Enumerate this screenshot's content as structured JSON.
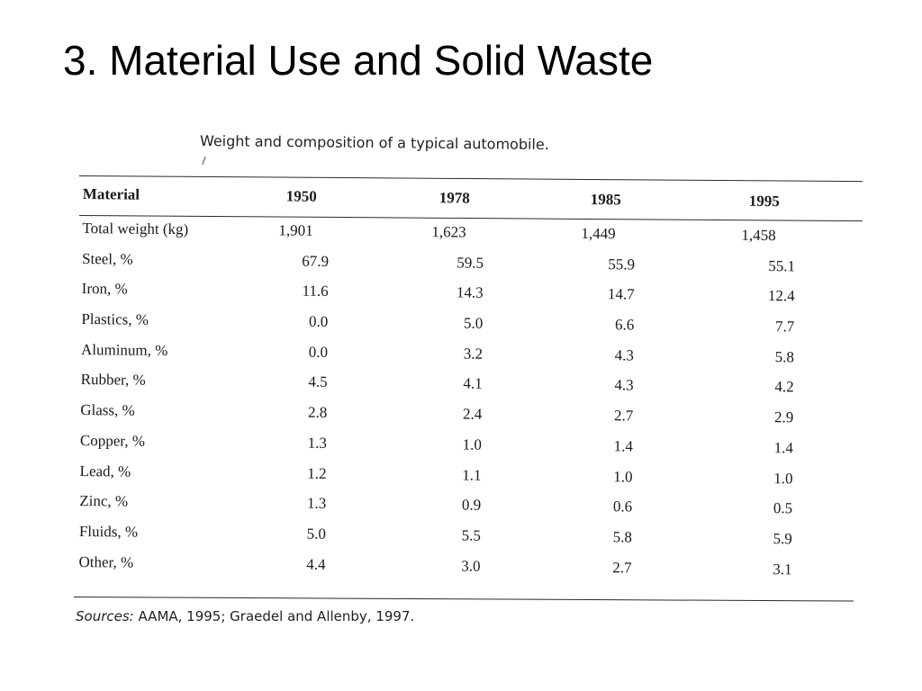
{
  "slide": {
    "title": "3. Material Use and Solid Waste"
  },
  "table": {
    "caption": "Weight and composition of a typical automobile.",
    "columns": [
      "Material",
      "1950",
      "1978",
      "1985",
      "1995"
    ],
    "rows": [
      [
        "Total weight (kg)",
        "1,901",
        "1,623",
        "1,449",
        "1,458"
      ],
      [
        "Steel, %",
        "67.9",
        "59.5",
        "55.9",
        "55.1"
      ],
      [
        "Iron, %",
        "11.6",
        "14.3",
        "14.7",
        "12.4"
      ],
      [
        "Plastics, %",
        "0.0",
        "5.0",
        "6.6",
        "7.7"
      ],
      [
        "Aluminum, %",
        "0.0",
        "3.2",
        "4.3",
        "5.8"
      ],
      [
        "Rubber, %",
        "4.5",
        "4.1",
        "4.3",
        "4.2"
      ],
      [
        "Glass, %",
        "2.8",
        "2.4",
        "2.7",
        "2.9"
      ],
      [
        "Copper, %",
        "1.3",
        "1.0",
        "1.4",
        "1.4"
      ],
      [
        "Lead, %",
        "1.2",
        "1.1",
        "1.0",
        "1.0"
      ],
      [
        "Zinc, %",
        "1.3",
        "0.9",
        "0.6",
        "0.5"
      ],
      [
        "Fluids, %",
        "5.0",
        "5.5",
        "5.8",
        "5.9"
      ],
      [
        "Other, %",
        "4.4",
        "3.0",
        "2.7",
        "3.1"
      ]
    ],
    "sources_label": "Sources:",
    "sources_text": "AAMA, 1995; Graedel and Allenby, 1997."
  }
}
